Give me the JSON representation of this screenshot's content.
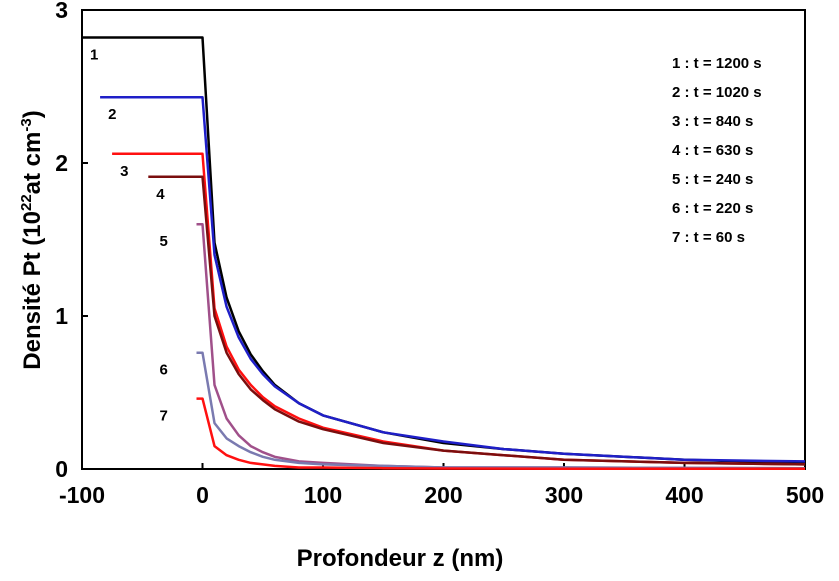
{
  "chart_data": {
    "type": "line",
    "xlabel": "Profondeur  z (nm)",
    "ylabel": {
      "prefix": "Densité Pt (10",
      "exp1": "22",
      "middle": "at cm",
      "exp2": "-3",
      "suffix": ")"
    },
    "xlim": [
      -100,
      500
    ],
    "ylim": [
      0,
      3
    ],
    "xticks": [
      "-100",
      "0",
      "100",
      "200",
      "300",
      "400",
      "500"
    ],
    "xtick_values": [
      -100,
      0,
      100,
      200,
      300,
      400,
      500
    ],
    "yticks": [
      "0",
      "1",
      "2",
      "3"
    ],
    "ytick_values": [
      0,
      1,
      2,
      3
    ],
    "grid": false,
    "legend_position": "top-right",
    "legend": [
      "1 : t = 1200 s",
      "2 : t = 1020 s",
      "3 : t = 840 s",
      "4 : t = 630 s",
      "5 : t = 240 s",
      "6 : t = 220 s",
      "7 : t = 60 s"
    ],
    "series": [
      {
        "label": "1",
        "color": "#000000",
        "x": [
          -100,
          0,
          10,
          20,
          30,
          40,
          50,
          60,
          80,
          100,
          150,
          200,
          250,
          300,
          400,
          500
        ],
        "y": [
          2.82,
          2.82,
          1.48,
          1.12,
          0.9,
          0.75,
          0.64,
          0.55,
          0.43,
          0.35,
          0.24,
          0.17,
          0.13,
          0.1,
          0.06,
          0.04
        ]
      },
      {
        "label": "2",
        "color": "#1f1fc8",
        "x": [
          -85,
          0,
          10,
          20,
          30,
          40,
          50,
          60,
          80,
          100,
          150,
          200,
          250,
          300,
          400,
          500
        ],
        "y": [
          2.43,
          2.43,
          1.4,
          1.06,
          0.86,
          0.72,
          0.62,
          0.54,
          0.43,
          0.35,
          0.24,
          0.18,
          0.13,
          0.1,
          0.06,
          0.05
        ]
      },
      {
        "label": "3",
        "color": "#ff1010",
        "x": [
          -75,
          0,
          10,
          20,
          30,
          40,
          50,
          60,
          80,
          100,
          150,
          200,
          250,
          300,
          400,
          500
        ],
        "y": [
          2.06,
          2.06,
          1.05,
          0.8,
          0.65,
          0.55,
          0.47,
          0.41,
          0.33,
          0.27,
          0.18,
          0.12,
          0.09,
          0.06,
          0.04,
          0.03
        ]
      },
      {
        "label": "4",
        "color": "#7a0e0e",
        "x": [
          -45,
          0,
          10,
          20,
          30,
          40,
          50,
          60,
          80,
          100,
          150,
          200,
          250,
          300,
          400,
          500
        ],
        "y": [
          1.91,
          1.91,
          1.0,
          0.76,
          0.62,
          0.52,
          0.45,
          0.39,
          0.31,
          0.26,
          0.17,
          0.12,
          0.09,
          0.06,
          0.04,
          0.03
        ]
      },
      {
        "label": "5",
        "color": "#a0508a",
        "x": [
          -5,
          0,
          10,
          20,
          30,
          40,
          50,
          60,
          80,
          100,
          150,
          200,
          300,
          500
        ],
        "y": [
          1.6,
          1.6,
          0.55,
          0.33,
          0.22,
          0.15,
          0.11,
          0.08,
          0.05,
          0.04,
          0.02,
          0.01,
          0.01,
          0.005
        ]
      },
      {
        "label": "6",
        "color": "#7a7ab0",
        "x": [
          -5,
          0,
          10,
          20,
          30,
          40,
          50,
          60,
          80,
          100,
          150,
          200,
          300,
          500
        ],
        "y": [
          0.76,
          0.76,
          0.3,
          0.2,
          0.15,
          0.11,
          0.08,
          0.06,
          0.04,
          0.03,
          0.02,
          0.01,
          0.01,
          0.005
        ]
      },
      {
        "label": "7",
        "color": "#ff1010",
        "x": [
          -5,
          0,
          10,
          20,
          30,
          40,
          50,
          60,
          80,
          100,
          150,
          200,
          300,
          500
        ],
        "y": [
          0.46,
          0.46,
          0.15,
          0.09,
          0.06,
          0.04,
          0.03,
          0.02,
          0.01,
          0.01,
          0.005,
          0.003,
          0.002,
          0.001
        ]
      }
    ]
  }
}
